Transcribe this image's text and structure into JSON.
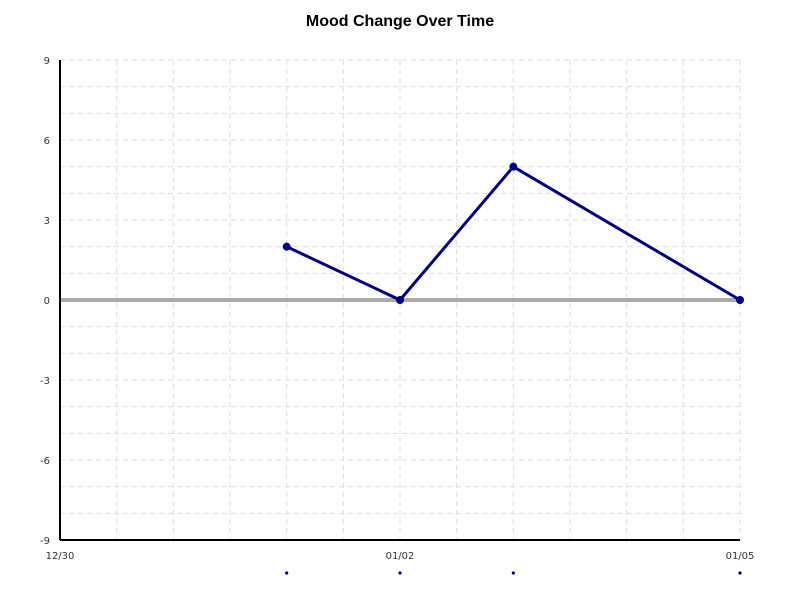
{
  "chart_data": {
    "type": "line",
    "title": "Mood Change Over Time",
    "xlabel": "",
    "ylabel": "",
    "x_ticks": [
      {
        "date": "12/30",
        "label": "12/30"
      },
      {
        "date": "01/02",
        "label": "01/02"
      },
      {
        "date": "01/05",
        "label": "01/05"
      }
    ],
    "xlim": [
      "12/30",
      "01/05"
    ],
    "ylim": [
      -9,
      9
    ],
    "y_ticks": [
      9,
      6,
      3,
      0,
      -3,
      -6,
      -9
    ],
    "grid": true,
    "zero_line": true,
    "series": [
      {
        "x": [
          "01/01",
          "01/02",
          "01/03",
          "01/05"
        ],
        "y": [
          2,
          0,
          5,
          0
        ],
        "color": "#000080"
      }
    ],
    "colors": {
      "line": "#000080",
      "zero_line": "#aaaaaa",
      "grid": "#dddddd",
      "axis": "#000000"
    }
  }
}
